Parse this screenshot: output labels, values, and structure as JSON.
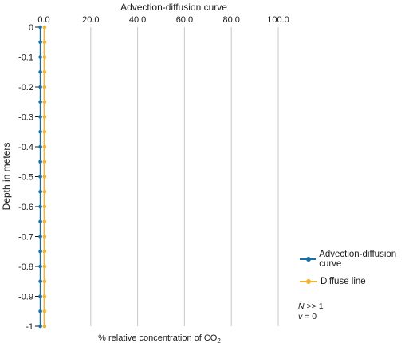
{
  "chart_data": {
    "type": "line",
    "title": "Advection-diffusion curve",
    "xlabel": "% relative concentration of CO",
    "xlabel_subscript": "2",
    "ylabel": "Depth in meters",
    "xlim": [
      0,
      100
    ],
    "ylim": [
      -1,
      0
    ],
    "x_ticks": [
      0,
      20,
      40,
      60,
      80,
      100
    ],
    "x_tick_labels": [
      "0.0",
      "20.0",
      "40.0",
      "60.0",
      "80.0",
      "100.0"
    ],
    "y_ticks": [
      0,
      -0.1,
      -0.2,
      -0.3,
      -0.4,
      -0.5,
      -0.6,
      -0.7,
      -0.8,
      -0.9,
      -1
    ],
    "y_tick_labels": [
      "0",
      "-0.1",
      "-0.2",
      "-0.3",
      "-0.4",
      "-0.5",
      "-0.6",
      "-0.7",
      "-0.8",
      "-0.9",
      "-1"
    ],
    "grid": "vertical",
    "legend_position": "right",
    "y_points": [
      0,
      -0.05,
      -0.1,
      -0.15,
      -0.2,
      -0.25,
      -0.3,
      -0.35,
      -0.4,
      -0.45,
      -0.5,
      -0.55,
      -0.6,
      -0.65,
      -0.7,
      -0.75,
      -0.8,
      -0.85,
      -0.9,
      -0.95,
      -1
    ],
    "series": [
      {
        "name": "Advection-diffusion curve",
        "color": "#1a6fa0",
        "x": [
          -1.5,
          -1.5,
          -1.5,
          -1.5,
          -1.5,
          -1.5,
          -1.5,
          -1.5,
          -1.5,
          -1.5,
          -1.5,
          -1.5,
          -1.5,
          -1.5,
          -1.5,
          -1.5,
          -1.5,
          -1.5,
          -1.5,
          -1.5,
          -1.5
        ]
      },
      {
        "name": "Diffuse line",
        "color": "#f2b233",
        "x": [
          0.3,
          0.3,
          0.3,
          0.3,
          0.3,
          0.3,
          0.3,
          0.3,
          0.3,
          0.3,
          0.3,
          0.3,
          0.3,
          0.3,
          0.3,
          0.3,
          0.3,
          0.3,
          0.3,
          0.3,
          0.3
        ]
      }
    ],
    "annotations": {
      "line1_var": "N",
      "line1_rest": " >> 1",
      "line2_var": "v",
      "line2_rest": " = 0"
    }
  }
}
